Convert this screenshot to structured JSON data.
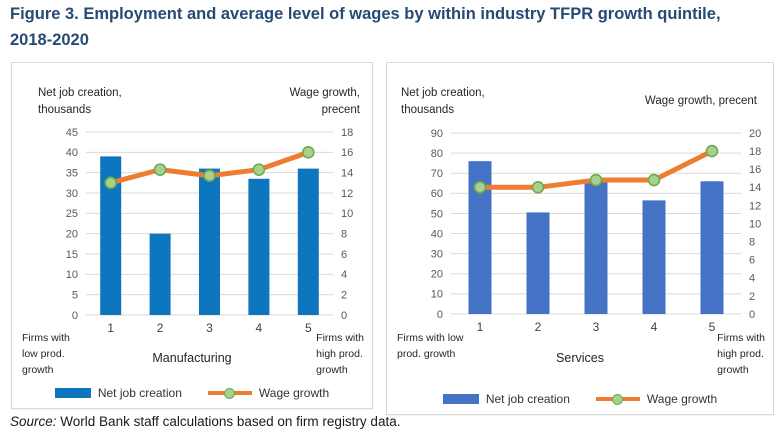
{
  "title_lines": [
    "Figure 3. Employment and average level of wages by within industry TFPR growth quintile,",
    "2018-2020"
  ],
  "source": {
    "prefix": "Source:",
    "text": "World Bank staff calculations based on firm registry data."
  },
  "colors": {
    "title": "#264A73",
    "panel_border": "#D9D9D9",
    "gridline": "#D9D9D9",
    "tick_text": "#595959",
    "category_text": "#404040",
    "manufacturing_bar": "#0E76BE",
    "services_bar": "#4472C4",
    "wage_line": "#ED7D31",
    "marker_fill": "#A9D18E",
    "marker_stroke": "#6FA84F"
  },
  "chart_data": [
    {
      "type": "bar",
      "panel": "Manufacturing",
      "categories": [
        "1",
        "2",
        "3",
        "4",
        "5"
      ],
      "series": [
        {
          "name": "Net job creation",
          "type": "bar",
          "axis": "left",
          "color": "#0E76BE",
          "values": [
            39,
            20,
            36,
            33.5,
            36
          ]
        },
        {
          "name": "Wage growth",
          "type": "line",
          "axis": "right",
          "color": "#ED7D31",
          "marker_fill": "#A9D18E",
          "marker_stroke": "#6FA84F",
          "values": [
            13,
            14.3,
            13.7,
            14.3,
            16
          ]
        }
      ],
      "left_axis": {
        "label_lines": [
          "Net job creation,",
          "thousands"
        ],
        "min": 0,
        "max": 45,
        "step": 5
      },
      "right_axis": {
        "label_lines": [
          "Wage growth,",
          "precent"
        ],
        "min": 0,
        "max": 18,
        "step": 2
      },
      "x_axis": {
        "title": "Manufacturing",
        "left_note_lines": [
          "Firms with",
          "low prod.",
          "growth"
        ],
        "right_note_lines": [
          "Firms with",
          "high prod.",
          "growth"
        ]
      },
      "grid": true,
      "legend_position": "bottom"
    },
    {
      "type": "bar",
      "panel": "Services",
      "categories": [
        "1",
        "2",
        "3",
        "4",
        "5"
      ],
      "series": [
        {
          "name": "Net job creation",
          "type": "bar",
          "axis": "left",
          "color": "#4472C4",
          "values": [
            76,
            50.5,
            66,
            56.5,
            66
          ]
        },
        {
          "name": "Wage growth",
          "type": "line",
          "axis": "right",
          "color": "#ED7D31",
          "marker_fill": "#A9D18E",
          "marker_stroke": "#6FA84F",
          "values": [
            14,
            14,
            14.8,
            14.8,
            18
          ]
        }
      ],
      "left_axis": {
        "label_lines": [
          "Net job creation,",
          "thousands"
        ],
        "min": 0,
        "max": 90,
        "step": 10
      },
      "right_axis": {
        "label_lines": [
          "Wage growth, precent"
        ],
        "min": 0,
        "max": 20,
        "step": 2
      },
      "x_axis": {
        "title": "Services",
        "left_note_lines": [
          "Firms with low",
          "prod. growth"
        ],
        "right_note_lines": [
          "Firms with",
          "high prod.",
          "growth"
        ]
      },
      "grid": true,
      "legend_position": "bottom"
    }
  ]
}
